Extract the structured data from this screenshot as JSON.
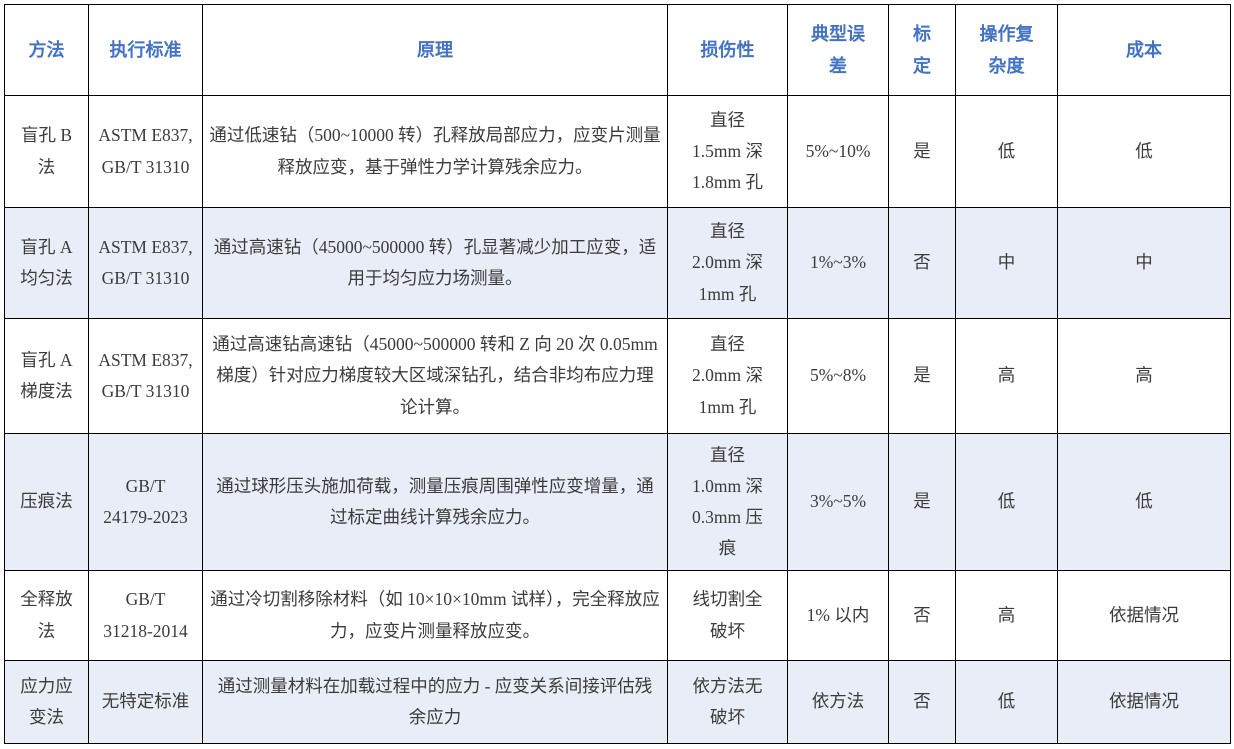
{
  "colors": {
    "header_text": "#4472C4",
    "body_text": "#3b3b3b",
    "stripe_background": "#E9EDF8",
    "border": "#000000"
  },
  "table": {
    "headers": {
      "method": "方法",
      "standard": "执行标准",
      "principle": "原理",
      "damage": "损伤性",
      "error": "典型误\n差",
      "calibration": "标\n定",
      "complexity": "操作复\n杂度",
      "cost": "成本"
    },
    "rows": [
      {
        "method": "盲孔 B\n法",
        "standard": "ASTM E837,\nGB/T 31310",
        "principle": "通过低速钻（500~10000 转）孔释放局部应力，应变片测量释放应变，基于弹性力学计算残余应力。",
        "damage": "直径\n1.5mm 深\n1.8mm 孔",
        "error": "5%~10%",
        "calibration": "是",
        "complexity": "低",
        "cost": "低"
      },
      {
        "method": "盲孔 A\n均匀法",
        "standard": "ASTM E837,\nGB/T 31310",
        "principle": "通过高速钻（45000~500000 转）孔显著减少加工应变，适用于均匀应力场测量。",
        "damage": "直径\n2.0mm 深\n1mm 孔",
        "error": "1%~3%",
        "calibration": "否",
        "complexity": "中",
        "cost": "中"
      },
      {
        "method": "盲孔 A\n梯度法",
        "standard": "ASTM E837,\nGB/T 31310",
        "principle": "通过高速钻高速钻（45000~500000 转和 Z 向 20 次 0.05mm 梯度）针对应力梯度较大区域深钻孔，结合非均布应力理论计算。",
        "damage": "直径\n2.0mm 深\n1mm 孔",
        "error": "5%~8%",
        "calibration": "是",
        "complexity": "高",
        "cost": "高"
      },
      {
        "method": "压痕法",
        "standard": "GB/T\n24179-2023",
        "principle": "通过球形压头施加荷载，测量压痕周围弹性应变增量，通过标定曲线计算残余应力。",
        "damage": "直径\n1.0mm 深\n0.3mm 压\n痕",
        "error": "3%~5%",
        "calibration": "是",
        "complexity": "低",
        "cost": "低"
      },
      {
        "method": "全释放\n法",
        "standard": "GB/T\n31218-2014",
        "principle": "通过冷切割移除材料（如 10×10×10mm 试样），完全释放应力，应变片测量释放应变。",
        "damage": "线切割全\n破坏",
        "error": "1% 以内",
        "calibration": "否",
        "complexity": "高",
        "cost": "依据情况"
      },
      {
        "method": "应力应\n变法",
        "standard": "无特定标准",
        "principle": "通过测量材料在加载过程中的应力 - 应变关系间接评估残余应力",
        "damage": "依方法无\n破坏",
        "error": "依方法",
        "calibration": "否",
        "complexity": "低",
        "cost": "依据情况"
      }
    ]
  }
}
